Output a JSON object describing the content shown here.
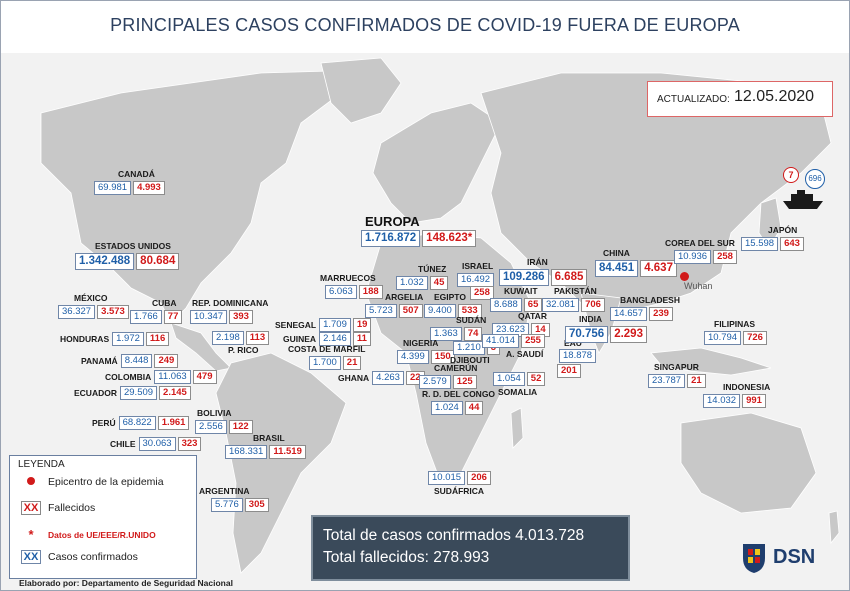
{
  "title": "PRINCIPALES CASOS CONFIRMADOS DE COVID-19 FUERA DE EUROPA",
  "updated": {
    "label": "ACTUALIZADO:",
    "date": "12.05.2020"
  },
  "ship": {
    "deaths": "7",
    "cases": "696"
  },
  "wuhan_label": "Wuhan",
  "europe": {
    "label": "EUROPA",
    "cases": "1.716.872",
    "deaths": "148.623*"
  },
  "countries": {
    "canada": {
      "name": "CANADÁ",
      "cases": "69.981",
      "deaths": "4.993"
    },
    "usa": {
      "name": "ESTADOS UNIDOS",
      "cases": "1.342.488",
      "deaths": "80.684"
    },
    "mexico": {
      "name": "MÉXICO",
      "cases": "36.327",
      "deaths": "3.573"
    },
    "cuba": {
      "name": "CUBA",
      "cases": "1.766",
      "deaths": "77"
    },
    "rep_dominicana": {
      "name": "REP. DOMINICANA",
      "cases": "10.347",
      "deaths": "393"
    },
    "honduras": {
      "name": "HONDURAS",
      "cases": "1.972",
      "deaths": "116"
    },
    "p_rico": {
      "name": "P. RICO",
      "cases": "2.198",
      "deaths": "113"
    },
    "panama": {
      "name": "PANAMÁ",
      "cases": "8.448",
      "deaths": "249"
    },
    "colombia": {
      "name": "COLOMBIA",
      "cases": "11.063",
      "deaths": "479"
    },
    "ecuador": {
      "name": "ECUADOR",
      "cases": "29.509",
      "deaths": "2.145"
    },
    "peru": {
      "name": "PERÚ",
      "cases": "68.822",
      "deaths": "1.961"
    },
    "bolivia": {
      "name": "BOLIVIA",
      "cases": "2.556",
      "deaths": "122"
    },
    "chile": {
      "name": "CHILE",
      "cases": "30.063",
      "deaths": "323"
    },
    "brasil": {
      "name": "BRASIL",
      "cases": "168.331",
      "deaths": "11.519"
    },
    "argentina": {
      "name": "ARGENTINA",
      "cases": "5.776",
      "deaths": "305"
    },
    "marruecos": {
      "name": "MARRUECOS",
      "cases": "6.063",
      "deaths": "188"
    },
    "tunez": {
      "name": "TÚNEZ",
      "cases": "1.032",
      "deaths": "45"
    },
    "israel": {
      "name": "ISRAEL",
      "cases": "16.492",
      "deaths": "258"
    },
    "argelia": {
      "name": "ARGELIA",
      "cases": "5.723",
      "deaths": "507"
    },
    "egipto": {
      "name": "EGIPTO",
      "cases": "9.400",
      "deaths": "533"
    },
    "senegal": {
      "name": "SENEGAL",
      "cases": "1.709",
      "deaths": "19"
    },
    "guinea": {
      "name": "GUINEA",
      "cases": "2.146",
      "deaths": "11"
    },
    "costa_marfil": {
      "name": "COSTA DE MARFIL",
      "cases": "1.700",
      "deaths": "21"
    },
    "sudan": {
      "name": "SUDÁN",
      "cases": "1.363",
      "deaths": "74"
    },
    "nigeria": {
      "name": "NIGERIA",
      "cases": "4.399",
      "deaths": "150"
    },
    "djibouti": {
      "name": "DJIBOUTI",
      "cases": "1.210",
      "deaths": "3"
    },
    "ghana": {
      "name": "GHANA",
      "cases": "4.263",
      "deaths": "22"
    },
    "camerun": {
      "name": "CAMERÚN",
      "cases": "2.579",
      "deaths": "125"
    },
    "somalia": {
      "name": "SOMALIA",
      "cases": "1.054",
      "deaths": "52"
    },
    "rd_congo": {
      "name": "R. D. DEL CONGO",
      "cases": "1.024",
      "deaths": "44"
    },
    "sudafrica": {
      "name": "SUDÁFRICA",
      "cases": "10.015",
      "deaths": "206"
    },
    "iran": {
      "name": "IRÁN",
      "cases": "109.286",
      "deaths": "6.685"
    },
    "kuwait": {
      "name": "KUWAIT",
      "cases": "8.688",
      "deaths": "65"
    },
    "qatar": {
      "name": "QATAR",
      "cases": "23.623",
      "deaths": "14"
    },
    "a_saudi": {
      "name": "A. SAUDÍ",
      "cases": "41.014",
      "deaths": "255"
    },
    "eau": {
      "name": "EAU",
      "cases": "18.878",
      "deaths": "201"
    },
    "pakistan": {
      "name": "PAKISTÁN",
      "cases": "32.081",
      "deaths": "706"
    },
    "india": {
      "name": "INDIA",
      "cases": "70.756",
      "deaths": "2.293"
    },
    "bangladesh": {
      "name": "BANGLADESH",
      "cases": "14.657",
      "deaths": "239"
    },
    "china": {
      "name": "CHINA",
      "cases": "84.451",
      "deaths": "4.637"
    },
    "corea_sur": {
      "name": "COREA DEL SUR",
      "cases": "10.936",
      "deaths": "258"
    },
    "japon": {
      "name": "JAPÓN",
      "cases": "15.598",
      "deaths": "643"
    },
    "filipinas": {
      "name": "FILIPINAS",
      "cases": "10.794",
      "deaths": "726"
    },
    "singapur": {
      "name": "SINGAPUR",
      "cases": "23.787",
      "deaths": "21"
    },
    "indonesia": {
      "name": "INDONESIA",
      "cases": "14.032",
      "deaths": "991"
    }
  },
  "legend": {
    "title": "LEYENDA",
    "epicentro": "Epicentro de la epidemia",
    "fallecidos": "Fallecidos",
    "datos_ue": "Datos de UE/EEE/R.UNIDO",
    "confirmados": "Casos confirmados",
    "xx": "XX",
    "asterisk": "*"
  },
  "totals": {
    "confirmed": "Total de casos confirmados 4.013.728",
    "deaths": "Total fallecidos: 278.993"
  },
  "footer": "Elaborado por: Departamento de Seguridad Nacional",
  "logo": "DSN",
  "colors": {
    "land": "#c8c8c8",
    "sea": "#f2f2f2",
    "cases": "#1f5fa8",
    "deaths": "#d11a1a",
    "title": "#2d4160"
  }
}
